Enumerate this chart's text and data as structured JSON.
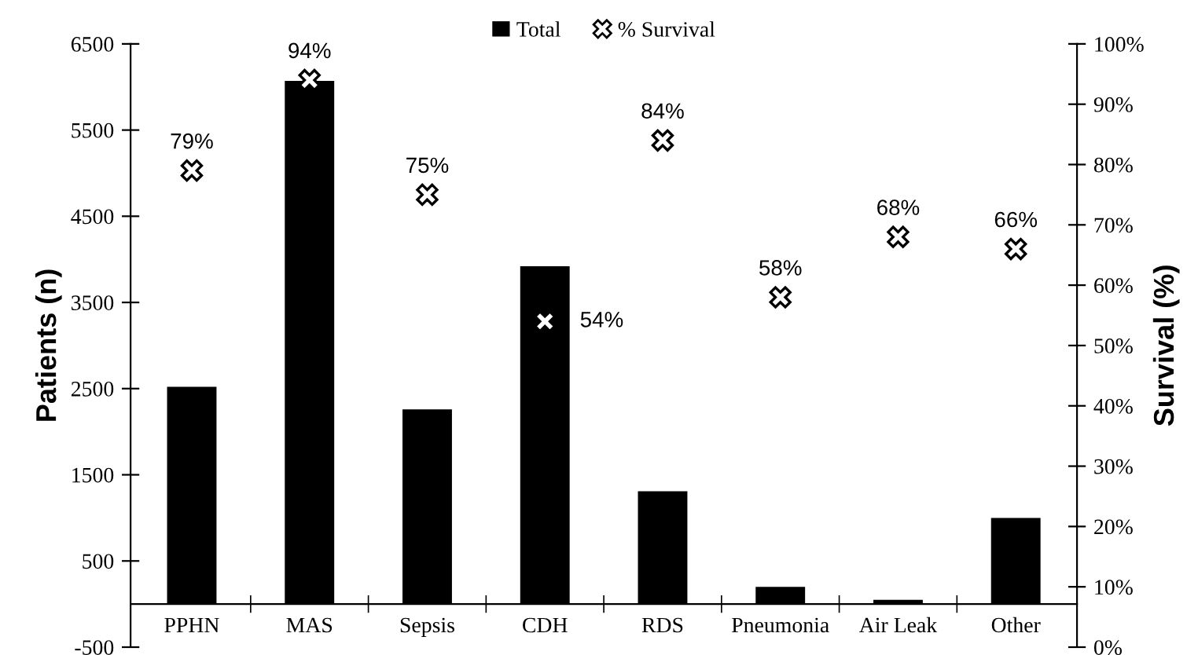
{
  "chart_data": {
    "type": "bar",
    "categories": [
      "PPHN",
      "MAS",
      "Sepsis",
      "CDH",
      "RDS",
      "Pneumonia",
      "Air Leak",
      "Other"
    ],
    "series": [
      {
        "name": "Total",
        "color": "#000000",
        "values": [
          2520,
          6070,
          2260,
          3920,
          1310,
          200,
          50,
          1000
        ]
      },
      {
        "name": "% Survival",
        "type": "scatter",
        "axis": "y2",
        "color": "#000000",
        "marker": "cross",
        "values": [
          79,
          94,
          75,
          54,
          84,
          58,
          68,
          66
        ],
        "value_labels": [
          "79%",
          "94%",
          "75%",
          "54%",
          "84%",
          "58%",
          "68%",
          "66%"
        ]
      }
    ],
    "ylabel": "Patients (n)",
    "y2label": "Survival (%)",
    "ylim": [
      -500,
      6500
    ],
    "yticks": [
      -500,
      500,
      1500,
      2500,
      3500,
      4500,
      5500,
      6500
    ],
    "y2lim": [
      0,
      100
    ],
    "y2ticks": [
      {
        "value": 0,
        "label": "0%"
      },
      {
        "value": 10,
        "label": "10%"
      },
      {
        "value": 20,
        "label": "20%"
      },
      {
        "value": 30,
        "label": "30%"
      },
      {
        "value": 40,
        "label": "40%"
      },
      {
        "value": 50,
        "label": "50%"
      },
      {
        "value": 60,
        "label": "60%"
      },
      {
        "value": 70,
        "label": "70%"
      },
      {
        "value": 80,
        "label": "80%"
      },
      {
        "value": 90,
        "label": "90%"
      },
      {
        "value": 100,
        "label": "100%"
      }
    ],
    "legend": "top",
    "grid": false
  }
}
